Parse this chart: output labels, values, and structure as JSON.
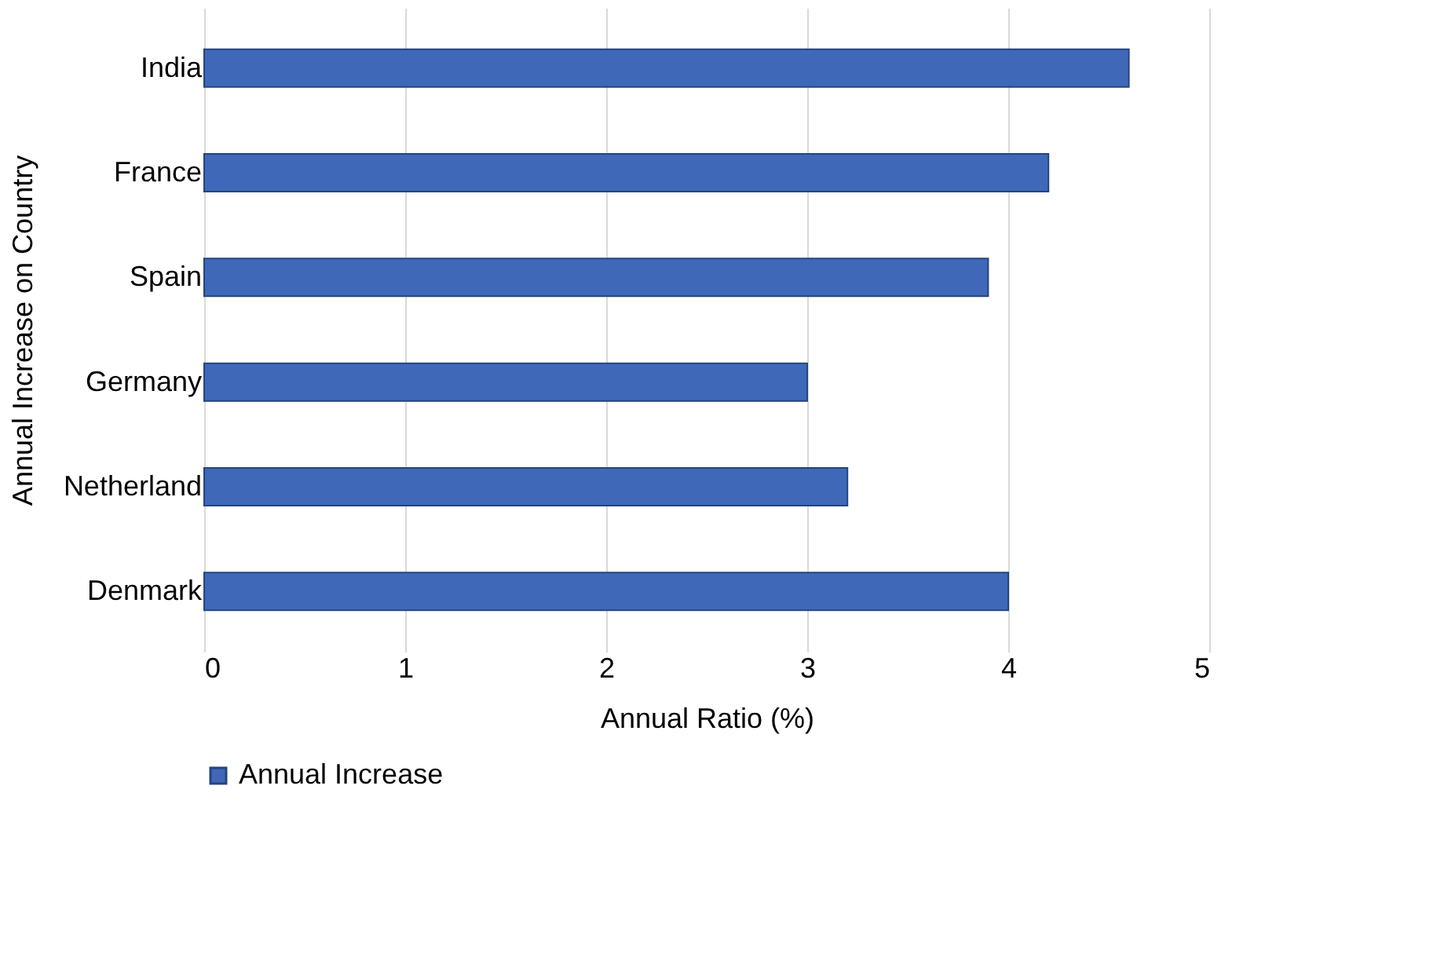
{
  "chart_data": {
    "type": "bar",
    "orientation": "horizontal",
    "categories": [
      "India",
      "France",
      "Spain",
      "Germany",
      "Netherland",
      "Denmark"
    ],
    "series": [
      {
        "name": "Annual Increase",
        "color": "#3f68b8",
        "values": [
          4.6,
          4.2,
          3.9,
          3.0,
          3.2,
          4.0
        ]
      }
    ],
    "xlabel": "Annual Ratio (%)",
    "ylabel": "Annual Increase on Country",
    "xlim": [
      0,
      5
    ],
    "xticks": [
      0,
      1,
      2,
      3,
      4,
      5
    ],
    "grid": "x",
    "legend": "bottom"
  }
}
